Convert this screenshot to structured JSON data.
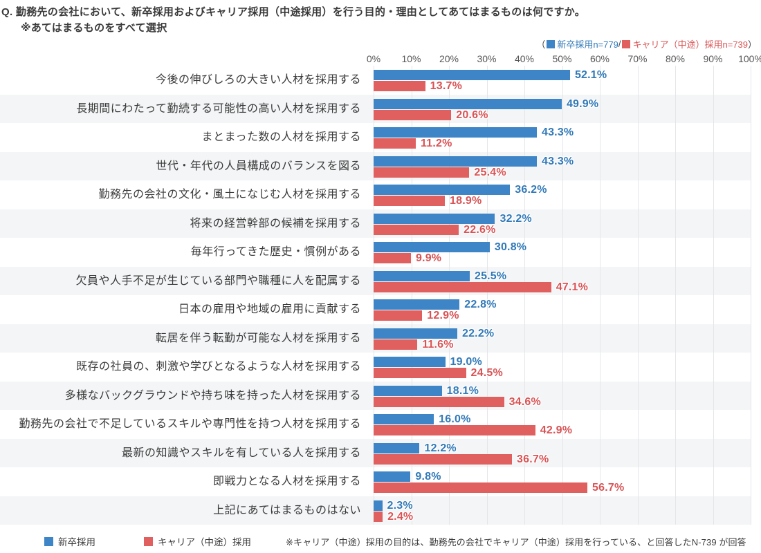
{
  "header": {
    "title": "Q. 勤務先の会社において、新卒採用およびキャリア採用（中途採用）を行う目的・理由としてあてはまるものは何ですか。",
    "subtitle": "※あてはまるものをすべて選択"
  },
  "legend_top": {
    "prefix": "（",
    "series1_label": "新卒採用n=779",
    "separator": " / ",
    "series2_label": "キャリア（中途）採用n=739",
    "suffix": "）"
  },
  "footer": {
    "legend": [
      {
        "label": "新卒採用"
      },
      {
        "label": "キャリア（中途）採用"
      }
    ],
    "note": "※キャリア（中途）採用の目的は、勤務先の会社でキャリア（中途）採用を行っている、と回答したN-739 が回答"
  },
  "colors": {
    "bar_blue": "#3d85c6",
    "bar_red": "#e0605f",
    "label_blue": "#3179b8",
    "label_red": "#d95355",
    "stripe": "#f3f5f6",
    "gridline": "#e4e6e8"
  },
  "chart_data": {
    "type": "bar",
    "orientation": "horizontal",
    "title": "新卒採用およびキャリア採用（中途採用）を行う目的・理由",
    "xlim": [
      0,
      100
    ],
    "grid": true,
    "legend_position": "bottom",
    "x_ticks": [
      "0%",
      "10%",
      "20%",
      "30%",
      "40%",
      "50%",
      "60%",
      "70%",
      "80%",
      "90%",
      "100%"
    ],
    "categories": [
      "今後の伸びしろの大きい人材を採用する",
      "長期間にわたって勤続する可能性の高い人材を採用する",
      "まとまった数の人材を採用する",
      "世代・年代の人員構成のバランスを図る",
      "勤務先の会社の文化・風土になじむ人材を採用する",
      "将来の経営幹部の候補を採用する",
      "毎年行ってきた歴史・慣例がある",
      "欠員や人手不足が生じている部門や職種に人を配属する",
      "日本の雇用や地域の雇用に貢献する",
      "転居を伴う転勤が可能な人材を採用する",
      "既存の社員の、刺激や学びとなるような人材を採用する",
      "多様なバックグラウンドや持ち味を持った人材を採用する",
      "勤務先の会社で不足しているスキルや専門性を持つ人材を採用する",
      "最新の知識やスキルを有している人を採用する",
      "即戦力となる人材を採用する",
      "上記にあてはまるものはない"
    ],
    "series": [
      {
        "name": "新卒採用",
        "n": 779,
        "color": "#3d85c6",
        "values": [
          52.1,
          49.9,
          43.3,
          43.3,
          36.2,
          32.2,
          30.8,
          25.5,
          22.8,
          22.2,
          19.0,
          18.1,
          16.0,
          12.2,
          9.8,
          2.3
        ]
      },
      {
        "name": "キャリア（中途）採用",
        "n": 739,
        "color": "#e0605f",
        "values": [
          13.7,
          20.6,
          11.2,
          25.4,
          18.9,
          22.6,
          9.9,
          47.1,
          12.9,
          11.6,
          24.5,
          34.6,
          42.9,
          36.7,
          56.7,
          2.4
        ]
      }
    ]
  }
}
